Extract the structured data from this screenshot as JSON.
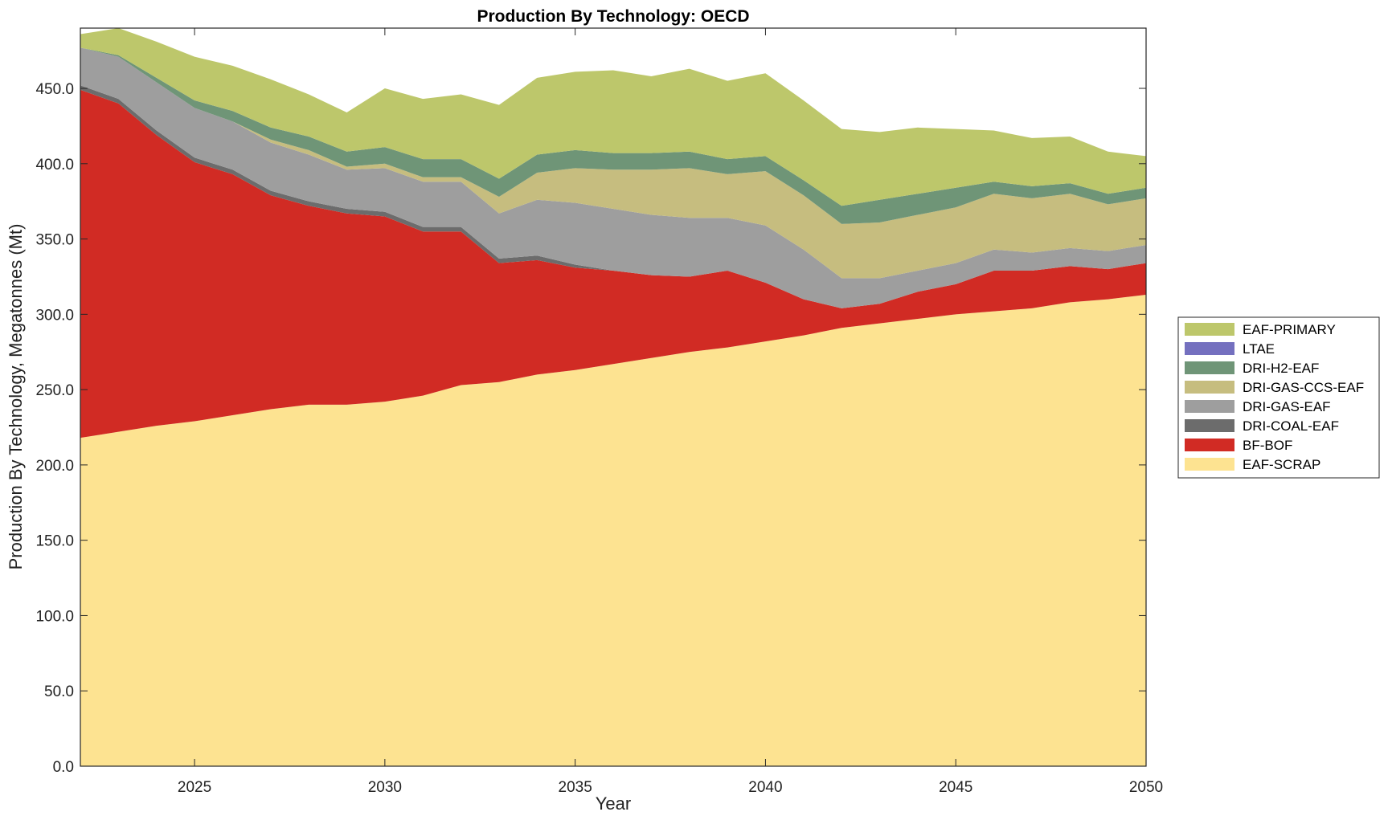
{
  "chart_data": {
    "type": "area",
    "stacked": true,
    "title": "Production By Technology: OECD",
    "xlabel": "Year",
    "ylabel": "Production By Technology, Megatonnes (Mt)",
    "xlim": [
      2022,
      2050
    ],
    "ylim": [
      0,
      490
    ],
    "x_ticks": [
      2025,
      2030,
      2035,
      2040,
      2045,
      2050
    ],
    "y_ticks": [
      0,
      50,
      100,
      150,
      200,
      250,
      300,
      350,
      400,
      450
    ],
    "y_tick_labels": [
      "0.0",
      "50.0",
      "100.0",
      "150.0",
      "200.0",
      "250.0",
      "300.0",
      "350.0",
      "400.0",
      "450.0"
    ],
    "legend_position": "right",
    "grid": false,
    "x": [
      2022,
      2023,
      2024,
      2025,
      2026,
      2027,
      2028,
      2029,
      2030,
      2031,
      2032,
      2033,
      2034,
      2035,
      2036,
      2037,
      2038,
      2039,
      2040,
      2041,
      2042,
      2043,
      2044,
      2045,
      2046,
      2047,
      2048,
      2049,
      2050
    ],
    "series": [
      {
        "name": "EAF-SCRAP",
        "color": "#fde391",
        "values": [
          218,
          222,
          226,
          229,
          233,
          237,
          240,
          240,
          242,
          246,
          253,
          255,
          260,
          263,
          267,
          271,
          275,
          278,
          282,
          286,
          291,
          294,
          297,
          300,
          302,
          304,
          308,
          310,
          313
        ]
      },
      {
        "name": "BF-BOF",
        "color": "#d12b24",
        "values": [
          231,
          218,
          193,
          172,
          160,
          142,
          132,
          127,
          123,
          109,
          102,
          79,
          76,
          68,
          62,
          55,
          50,
          51,
          39,
          24,
          13,
          13,
          18,
          20,
          27,
          25,
          24,
          20,
          21
        ]
      },
      {
        "name": "DRI-COAL-EAF",
        "color": "#6c6c6c",
        "values": [
          3,
          3,
          3,
          3,
          3,
          3,
          3,
          3,
          3,
          3,
          3,
          3,
          3,
          2,
          0,
          0,
          0,
          0,
          0,
          0,
          0,
          0,
          0,
          0,
          0,
          0,
          0,
          0,
          0
        ]
      },
      {
        "name": "DRI-GAS-EAF",
        "color": "#9e9e9e",
        "values": [
          25,
          28,
          32,
          33,
          32,
          32,
          31,
          26,
          29,
          30,
          30,
          30,
          37,
          41,
          41,
          40,
          39,
          35,
          38,
          33,
          20,
          17,
          14,
          14,
          14,
          12,
          12,
          12,
          12
        ]
      },
      {
        "name": "DRI-GAS-CCS-EAF",
        "color": "#c6bd7f",
        "values": [
          0,
          0,
          0,
          0,
          0,
          2,
          3,
          2,
          3,
          3,
          3,
          11,
          18,
          23,
          26,
          30,
          33,
          29,
          36,
          36,
          36,
          37,
          37,
          37,
          37,
          36,
          36,
          31,
          31
        ]
      },
      {
        "name": "DRI-H2-EAF",
        "color": "#6f9577",
        "values": [
          0,
          1,
          3,
          5,
          7,
          8,
          9,
          10,
          11,
          12,
          12,
          12,
          12,
          12,
          11,
          11,
          11,
          10,
          10,
          10,
          12,
          15,
          14,
          13,
          8,
          8,
          7,
          7,
          7
        ]
      },
      {
        "name": "LTAE",
        "color": "#7470bf",
        "values": [
          0,
          0,
          0,
          0,
          0,
          0,
          0,
          0,
          0,
          0,
          0,
          0,
          0,
          0,
          0,
          0,
          0,
          0,
          0,
          0,
          0,
          0,
          0,
          0,
          0,
          0,
          0,
          0,
          0
        ]
      },
      {
        "name": "EAF-PRIMARY",
        "color": "#bdc76b",
        "values": [
          9,
          18,
          24,
          29,
          30,
          32,
          28,
          26,
          39,
          40,
          43,
          49,
          51,
          52,
          55,
          51,
          55,
          52,
          55,
          53,
          51,
          45,
          44,
          39,
          34,
          32,
          31,
          28,
          21
        ]
      }
    ],
    "legend_order": [
      "EAF-PRIMARY",
      "LTAE",
      "DRI-H2-EAF",
      "DRI-GAS-CCS-EAF",
      "DRI-GAS-EAF",
      "DRI-COAL-EAF",
      "BF-BOF",
      "EAF-SCRAP"
    ]
  }
}
